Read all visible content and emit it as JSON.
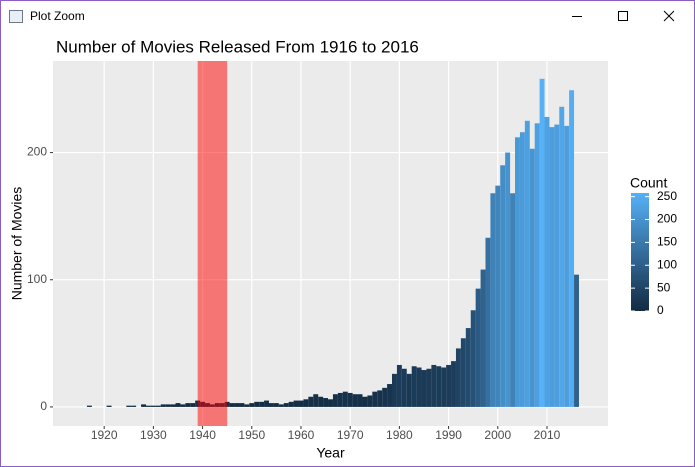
{
  "window": {
    "title": "Plot Zoom"
  },
  "chart_data": {
    "type": "histogram",
    "title": "Number of Movies Released From 1916 to 2016",
    "x_label": "Year",
    "y_label": "Number of Movies",
    "bins": [
      1915.5,
      1916.5,
      1917.5,
      1918.5,
      1919.5,
      1920.5,
      1921.5,
      1922.5,
      1923.5,
      1924.5,
      1925.5,
      1926.5,
      1927.5,
      1928.5,
      1929.5,
      1930.5,
      1931.5,
      1932.5,
      1933.5,
      1934.5,
      1935.5,
      1936.5,
      1937.5,
      1938.5,
      1939.5,
      1940.5,
      1941.5,
      1942.5,
      1943.5,
      1944.5,
      1945.5,
      1946.5,
      1947.5,
      1948.5,
      1949.5,
      1950.5,
      1951.5,
      1952.5,
      1953.5,
      1954.5,
      1955.5,
      1956.5,
      1957.5,
      1958.5,
      1959.5,
      1960.5,
      1961.5,
      1962.5,
      1963.5,
      1964.5,
      1965.5,
      1966.5,
      1967.5,
      1968.5,
      1969.5,
      1970.5,
      1971.5,
      1972.5,
      1973.5,
      1974.5,
      1975.5,
      1976.5,
      1977.5,
      1978.5,
      1979.5,
      1980.5,
      1981.5,
      1982.5,
      1983.5,
      1984.5,
      1985.5,
      1986.5,
      1987.5,
      1988.5,
      1989.5,
      1990.5,
      1991.5,
      1992.5,
      1993.5,
      1994.5,
      1995.5,
      1996.5,
      1997.5,
      1998.5,
      1999.5,
      2000.5,
      2001.5,
      2002.5,
      2003.5,
      2004.5,
      2005.5,
      2006.5,
      2007.5,
      2008.5,
      2009.5,
      2010.5,
      2011.5,
      2012.5,
      2013.5,
      2014.5,
      2015.5,
      2016.5
    ],
    "counts": [
      0,
      1,
      0,
      0,
      0,
      1,
      0,
      0,
      0,
      1,
      1,
      0,
      2,
      1,
      1,
      1,
      2,
      2,
      2,
      3,
      2,
      3,
      3,
      5,
      4,
      3,
      2,
      3,
      3,
      4,
      3,
      3,
      3,
      2,
      3,
      4,
      4,
      5,
      3,
      3,
      2,
      3,
      4,
      5,
      5,
      6,
      8,
      10,
      8,
      7,
      6,
      10,
      11,
      12,
      11,
      10,
      10,
      8,
      9,
      12,
      13,
      15,
      18,
      26,
      33,
      30,
      26,
      32,
      31,
      29,
      30,
      33,
      32,
      31,
      33,
      36,
      46,
      54,
      62,
      76,
      93,
      108,
      133,
      168,
      174,
      190,
      200,
      168,
      212,
      216,
      225,
      203,
      223,
      258,
      228,
      220,
      222,
      236,
      221,
      249,
      104
    ],
    "xlim": [
      1909.6,
      2022.4
    ],
    "ylim": [
      -15,
      272
    ],
    "xticks": [
      1920,
      1930,
      1940,
      1950,
      1960,
      1970,
      1980,
      1990,
      2000,
      2010
    ],
    "yticks": [
      0,
      100,
      200
    ],
    "grid": true,
    "low_color": "#132B43",
    "high_color": "#56B1F7",
    "highlight": {
      "xmin": 1939,
      "xmax": 1945,
      "color": "#FF0000",
      "opacity": 0.5
    },
    "legend": {
      "title": "Count",
      "limits": [
        0,
        258
      ],
      "ticks": [
        0,
        50,
        100,
        150,
        200,
        250
      ]
    }
  }
}
